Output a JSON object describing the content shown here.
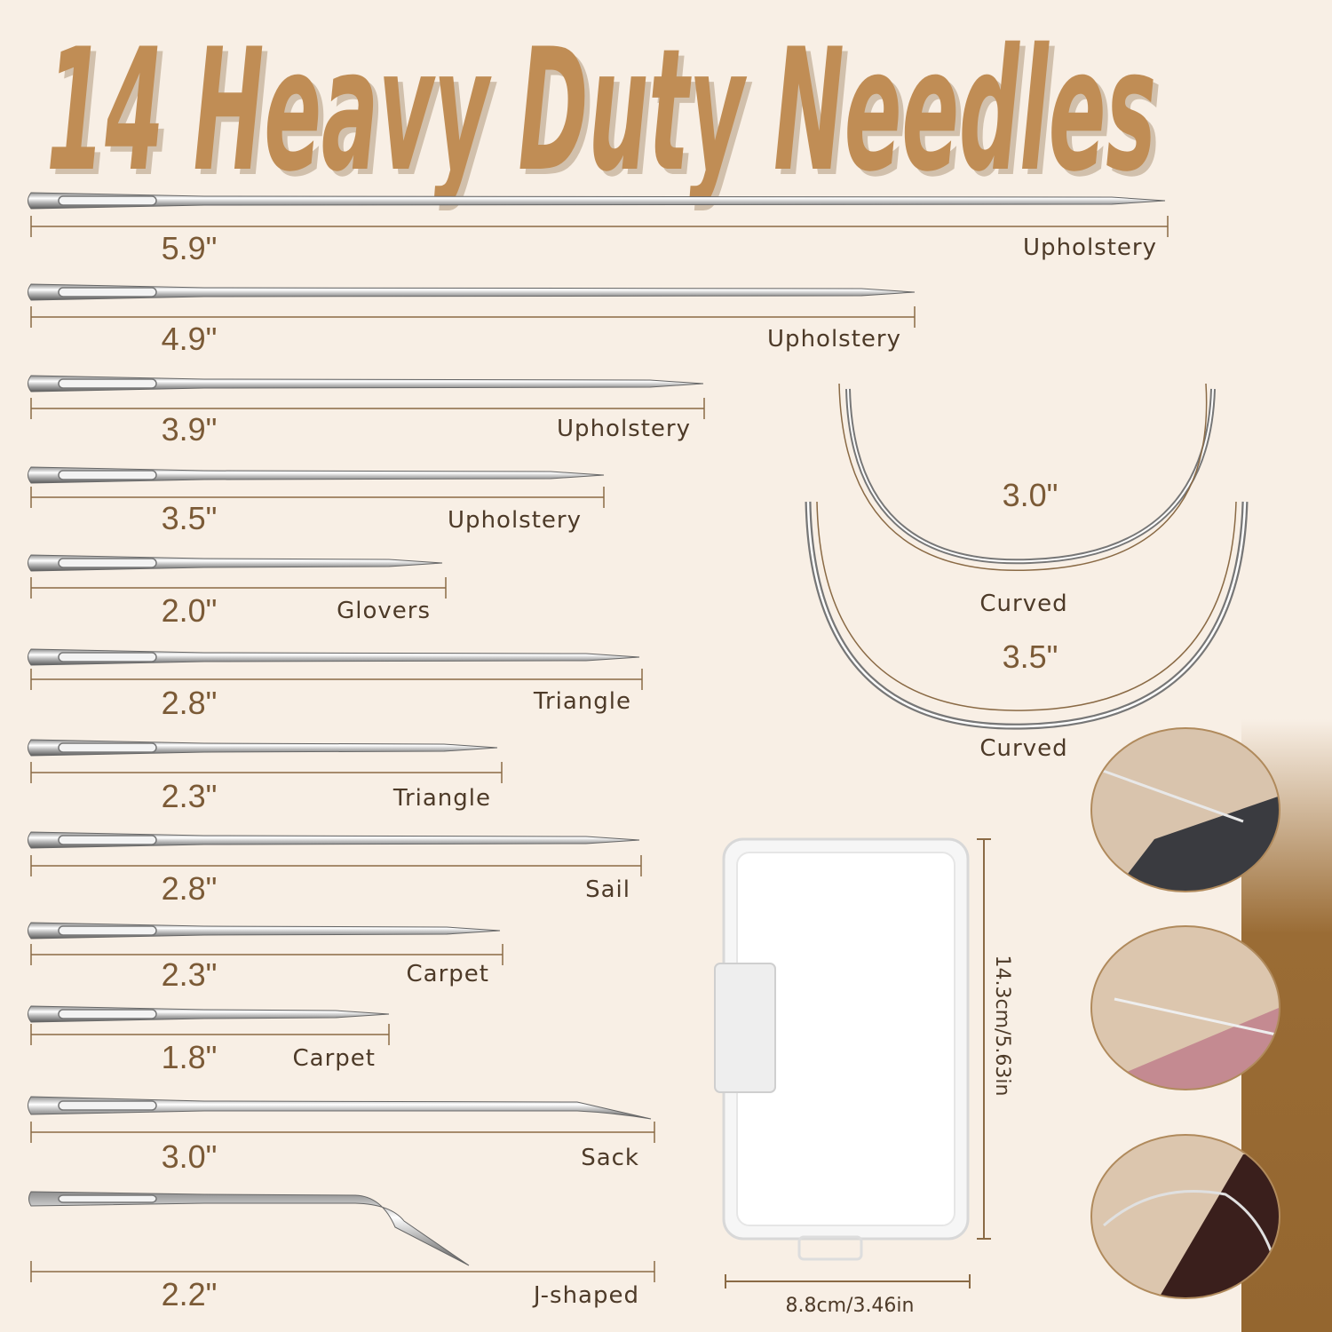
{
  "title": "14 Heavy Duty Needles",
  "colors": {
    "title": "#c08d55",
    "ruler": "#8a6a45",
    "background": "#f8efe5",
    "panel": "#9a6c35"
  },
  "needles": [
    {
      "length": "5.9\"",
      "type": "Upholstery"
    },
    {
      "length": "4.9\"",
      "type": "Upholstery"
    },
    {
      "length": "3.9\"",
      "type": "Upholstery"
    },
    {
      "length": "3.5\"",
      "type": "Upholstery"
    },
    {
      "length": "2.0\"",
      "type": "Glovers"
    },
    {
      "length": "2.8\"",
      "type": "Triangle"
    },
    {
      "length": "2.3\"",
      "type": "Triangle"
    },
    {
      "length": "2.8\"",
      "type": "Sail"
    },
    {
      "length": "2.3\"",
      "type": "Carpet"
    },
    {
      "length": "1.8\"",
      "type": "Carpet"
    },
    {
      "length": "3.0\"",
      "type": "Sack"
    },
    {
      "length": "2.2\"",
      "type": "J-shaped"
    }
  ],
  "curved": [
    {
      "length": "3.0\"",
      "type": "Curved"
    },
    {
      "length": "3.5\"",
      "type": "Curved"
    }
  ],
  "box": {
    "height": "14.3cm/5.63in",
    "width": "8.8cm/3.46in"
  },
  "photos": [
    "needle-through-plaid-fabric",
    "needle-through-pink-fabric",
    "curved-needle-through-leather"
  ]
}
